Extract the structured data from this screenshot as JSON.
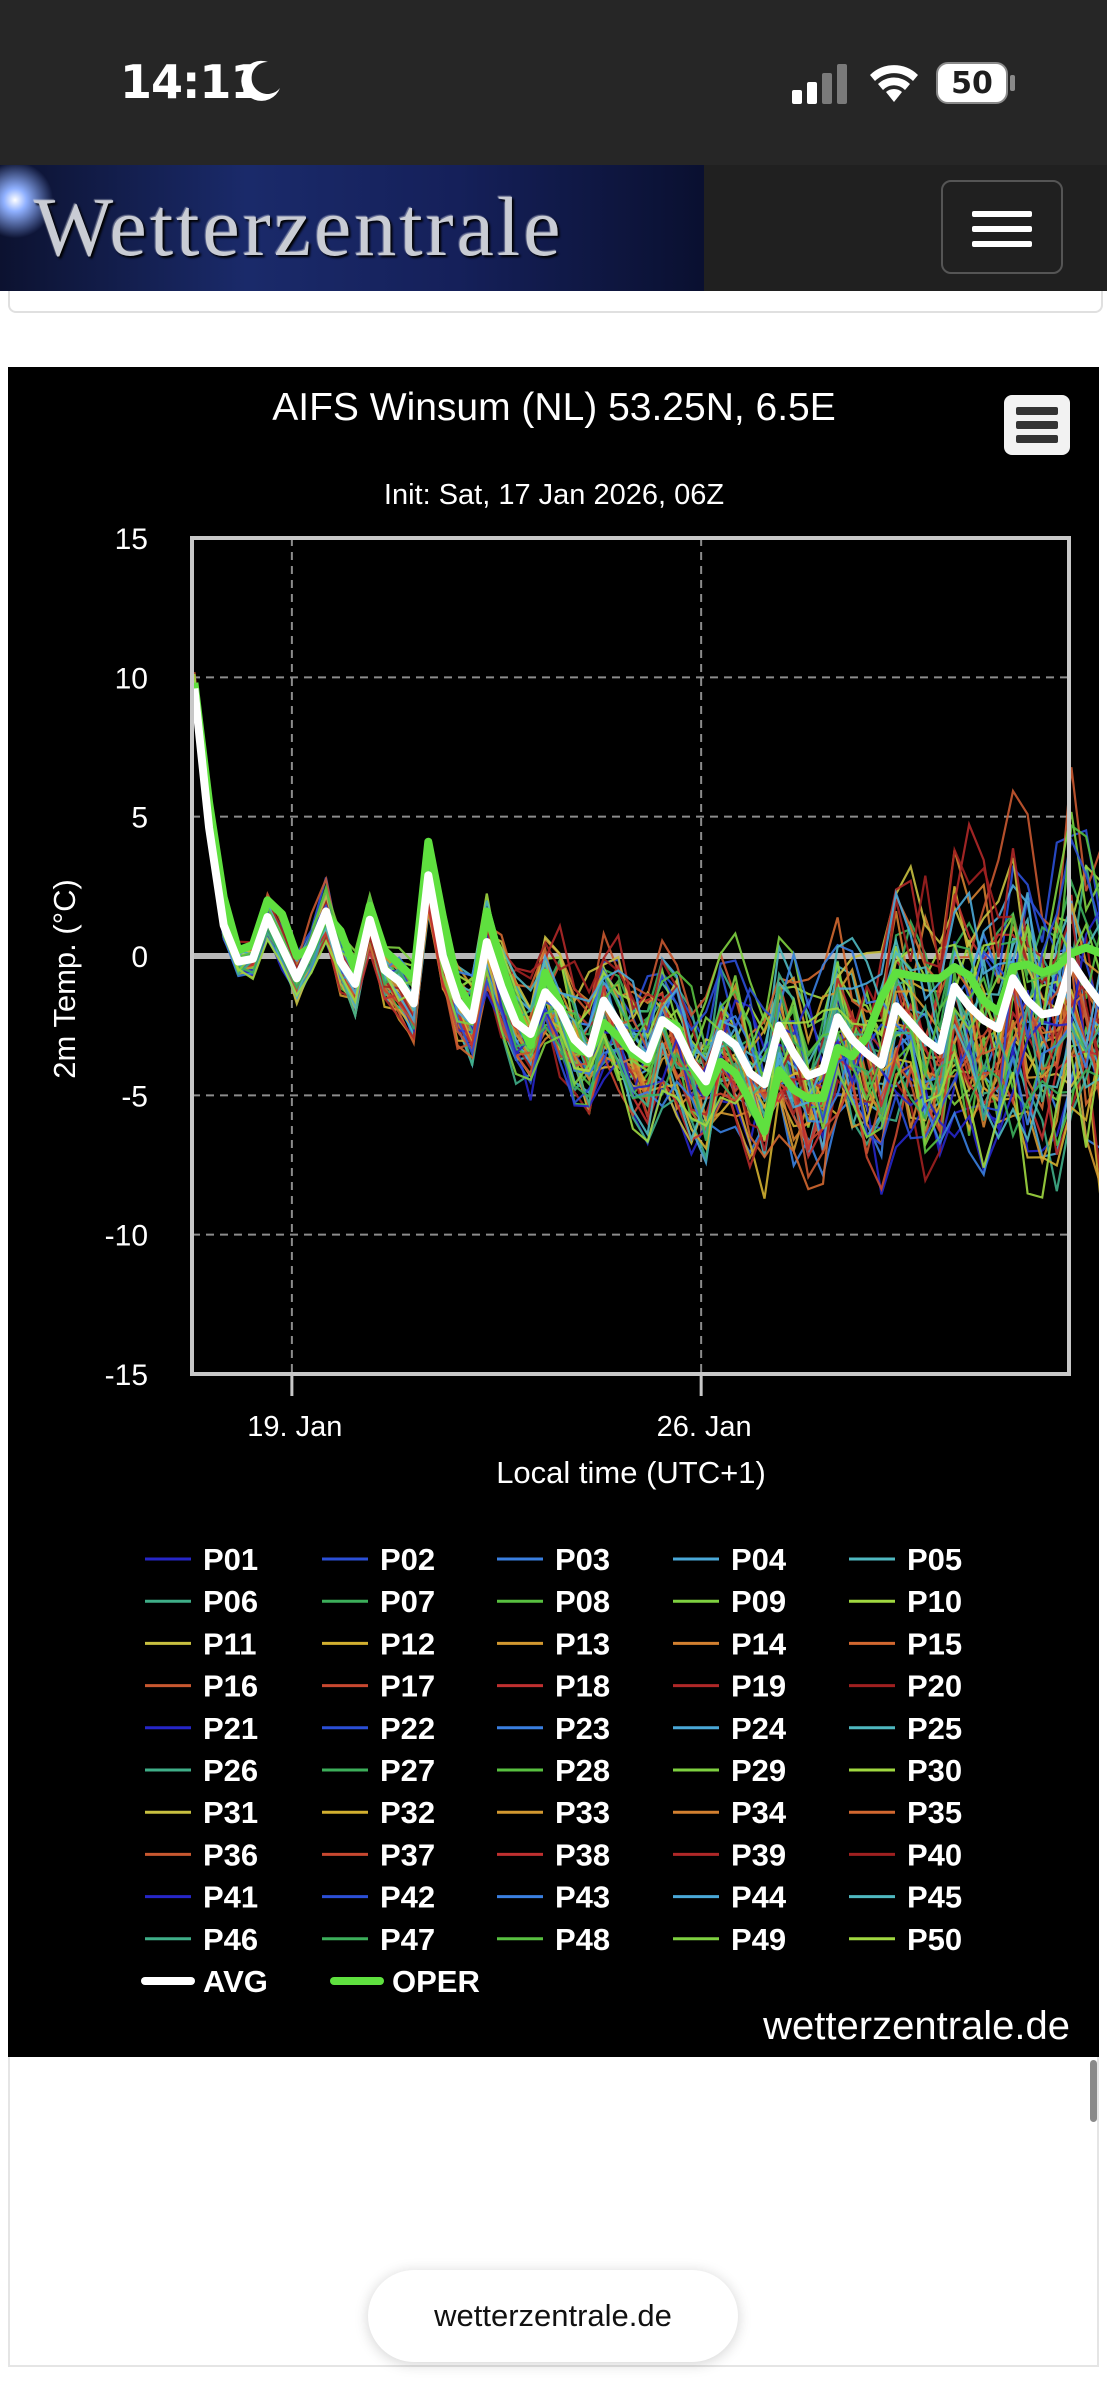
{
  "status_bar": {
    "time": "14:11",
    "battery": "50",
    "icons": [
      "moon-icon",
      "signal-icon",
      "wifi-icon",
      "battery-icon"
    ]
  },
  "navbar": {
    "logo_text": "Wetterzentrale",
    "menu_icon": "hamburger-menu-icon"
  },
  "url_bar": {
    "domain": "wetterzentrale.de"
  },
  "chart_data": {
    "type": "line",
    "title": "AIFS Winsum (NL) 53.25N, 6.5E",
    "subtitle": "Init: Sat, 17 Jan 2026, 06Z",
    "xlabel": "Local time (UTC+1)",
    "ylabel": "2m Temp. (°C)",
    "ylim": [
      -15,
      15
    ],
    "yticks": [
      -15,
      -10,
      -5,
      0,
      5,
      10,
      15
    ],
    "xlim": [
      "2026-01-17T07:00",
      "2026-02-01T07:00"
    ],
    "xticks": [
      {
        "date": "2026-01-19T00:00",
        "label": "19. Jan"
      },
      {
        "date": "2026-01-26T00:00",
        "label": "26. Jan"
      }
    ],
    "x_step_hours": 6,
    "grid": true,
    "legend_placement": "bottom",
    "credit": "wetterzentrale.de",
    "member_names": [
      "P01",
      "P02",
      "P03",
      "P04",
      "P05",
      "P06",
      "P07",
      "P08",
      "P09",
      "P10",
      "P11",
      "P12",
      "P13",
      "P14",
      "P15",
      "P16",
      "P17",
      "P18",
      "P19",
      "P20",
      "P21",
      "P22",
      "P23",
      "P24",
      "P25",
      "P26",
      "P27",
      "P28",
      "P29",
      "P30",
      "P31",
      "P32",
      "P33",
      "P34",
      "P35",
      "P36",
      "P37",
      "P38",
      "P39",
      "P40",
      "P41",
      "P42",
      "P43",
      "P44",
      "P45",
      "P46",
      "P47",
      "P48",
      "P49",
      "P50"
    ],
    "member_colors": [
      "#2626c8",
      "#2b4fd6",
      "#3a7fe0",
      "#4aa8d8",
      "#4fb8c0",
      "#3fae88",
      "#3cae5a",
      "#58c040",
      "#7ed040",
      "#a0d840",
      "#c8c040",
      "#d2b030",
      "#d29830",
      "#d28030",
      "#d26830",
      "#c85830",
      "#c84830",
      "#c03030",
      "#b02828",
      "#a02020"
    ],
    "series": [
      {
        "name": "AVG",
        "color": "#ffffff",
        "values": [
          9.6,
          4.6,
          1.1,
          -0.2,
          -0.1,
          1.4,
          0.3,
          -0.8,
          0.3,
          1.6,
          -0.2,
          -1.0,
          1.3,
          -0.5,
          -0.9,
          -1.7,
          2.9,
          0.0,
          -1.6,
          -2.3,
          0.5,
          -1.1,
          -2.4,
          -2.8,
          -1.3,
          -1.9,
          -3.0,
          -3.5,
          -1.6,
          -2.4,
          -3.3,
          -3.7,
          -2.3,
          -2.7,
          -3.8,
          -4.5,
          -2.8,
          -3.2,
          -4.2,
          -4.6,
          -2.5,
          -3.5,
          -4.3,
          -4.1,
          -2.2,
          -3.0,
          -3.5,
          -3.9,
          -1.8,
          -2.4,
          -3.0,
          -3.4,
          -1.1,
          -1.8,
          -2.3,
          -2.6,
          -0.8,
          -1.6,
          -2.1,
          -2.0,
          -0.2,
          -1.0,
          -1.7,
          -1.8,
          0.3,
          -0.6,
          -1.3,
          -1.6,
          0.9,
          0.0,
          -0.5,
          -0.5
        ]
      },
      {
        "name": "OPER",
        "color": "#5fe03f",
        "values": [
          9.8,
          5.5,
          2.1,
          0.2,
          0.4,
          2.0,
          1.5,
          0.0,
          0.3,
          1.5,
          0.9,
          -0.5,
          1.8,
          0.2,
          -0.3,
          -0.8,
          4.1,
          1.4,
          -1.0,
          -1.9,
          1.6,
          -0.3,
          -1.9,
          -3.2,
          -0.6,
          -1.7,
          -3.3,
          -3.5,
          -2.4,
          -2.9,
          -3.5,
          -3.8,
          -2.3,
          -2.5,
          -3.9,
          -4.9,
          -3.8,
          -4.2,
          -5.2,
          -6.3,
          -4.1,
          -4.8,
          -5.1,
          -5.1,
          -3.3,
          -3.6,
          -2.9,
          -1.5,
          -0.6,
          -0.7,
          -0.8,
          -0.8,
          -0.4,
          -0.7,
          -1.6,
          -2.0,
          -0.4,
          -0.3,
          -0.6,
          -0.4,
          0.1,
          0.3,
          0.1,
          -0.1,
          0.3,
          -0.7,
          -0.3,
          -1.5,
          -0.4,
          -1.8,
          -2.8,
          -3.9
        ]
      }
    ]
  }
}
